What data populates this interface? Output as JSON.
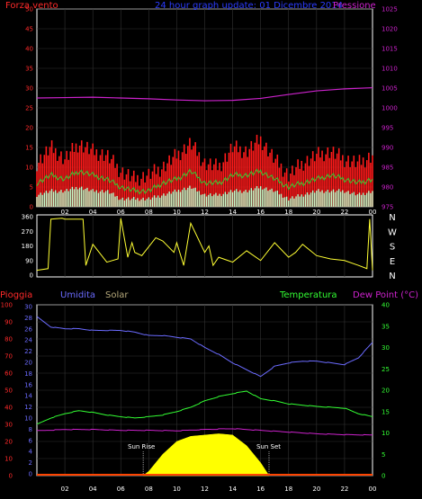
{
  "colors": {
    "background": "#000000",
    "wind_axis": "#ff2a2a",
    "pressure_axis": "#cc22cc",
    "title": "#2b3cff",
    "direction_axis": "#ffffff",
    "rain_axis": "#ff2a2a",
    "humidity_axis": "#6b6bff",
    "solar_axis": "#b5a87a",
    "temperature_axis": "#33ff33",
    "dewpoint_axis": "#cc22cc",
    "gust": "#ff1a1a",
    "wind_avg": "#33cc33",
    "wind_min": "#ccffcc",
    "pressure": "#cc22cc",
    "direction": "#ffff33",
    "humidity": "#6b6bff",
    "temperature": "#33ff33",
    "dewpoint": "#cc22cc",
    "solar": "#ffff00",
    "rain": "#ff4400"
  },
  "header": {
    "wind_label": "Forza vento",
    "title": "24 hour graph update: 01 Dicembre 2014",
    "pressure_label": "Pressione"
  },
  "bottom_header": {
    "rain_label": "Pioggia",
    "humidity_label": "Umidita",
    "solar_label": "Solar",
    "temperature_label": "Temperatura",
    "dewpoint_label": "Dew Point (°C)"
  },
  "annotations": {
    "sunrise": "Sun Rise",
    "sunset": "Sun Set"
  },
  "chart_data": [
    {
      "type": "line",
      "name": "wind",
      "x_ticks": [
        "02",
        "04",
        "06",
        "08",
        "10",
        "12",
        "14",
        "16",
        "18",
        "20",
        "22",
        "00"
      ],
      "ylim": [
        0,
        50
      ],
      "y_ticks": [
        0,
        5,
        10,
        15,
        20,
        25,
        30,
        35,
        40,
        45,
        50
      ],
      "y2lim": [
        975,
        1025
      ],
      "y2_ticks": [
        975,
        980,
        985,
        990,
        995,
        1000,
        1005,
        1010,
        1015,
        1020,
        1025
      ],
      "series": [
        {
          "key": "gust",
          "x": [
            0,
            1,
            2,
            3,
            4,
            5,
            6,
            7,
            8,
            9,
            10,
            11,
            12,
            13,
            14,
            15,
            16,
            17,
            18,
            19,
            20,
            21,
            22,
            23,
            24
          ],
          "values": [
            11,
            15,
            12,
            16,
            14,
            13,
            9,
            7,
            8,
            10,
            13,
            16,
            11,
            10,
            15,
            14,
            17,
            12,
            8,
            11,
            13,
            14,
            12,
            11,
            13
          ]
        },
        {
          "key": "average",
          "x": [
            0,
            1,
            2,
            3,
            4,
            5,
            6,
            7,
            8,
            9,
            10,
            11,
            12,
            13,
            14,
            15,
            16,
            17,
            18,
            19,
            20,
            21,
            22,
            23,
            24
          ],
          "values": [
            6,
            8,
            7,
            9,
            8,
            7,
            5,
            4,
            4,
            6,
            7,
            9,
            6,
            6,
            8,
            8,
            9,
            7,
            5,
            6,
            7,
            8,
            7,
            6,
            7
          ]
        },
        {
          "key": "minimum",
          "x": [
            0,
            1,
            2,
            3,
            4,
            5,
            6,
            7,
            8,
            9,
            10,
            11,
            12,
            13,
            14,
            15,
            16,
            17,
            18,
            19,
            20,
            21,
            22,
            23,
            24
          ],
          "values": [
            3,
            4,
            4,
            5,
            4,
            4,
            2,
            2,
            2,
            3,
            4,
            5,
            3,
            3,
            4,
            4,
            5,
            4,
            2,
            3,
            4,
            4,
            4,
            3,
            4
          ]
        },
        {
          "key": "pressure",
          "axis": "y2",
          "x": [
            0,
            2,
            4,
            6,
            8,
            10,
            12,
            14,
            16,
            18,
            20,
            22,
            24
          ],
          "values": [
            1002.5,
            1002.6,
            1002.7,
            1002.5,
            1002.3,
            1002.0,
            1001.8,
            1001.9,
            1002.4,
            1003.4,
            1004.3,
            1004.8,
            1005.1
          ]
        }
      ]
    },
    {
      "type": "line",
      "name": "wind_direction",
      "x_ticks": [
        "02",
        "04",
        "06",
        "08",
        "10",
        "12",
        "14",
        "16",
        "18",
        "20",
        "22",
        "00"
      ],
      "ylim": [
        0,
        360
      ],
      "y_ticks": [
        0,
        90,
        180,
        270,
        360
      ],
      "y2_ticks": [
        "N",
        "W",
        "S",
        "E",
        "N"
      ],
      "series": [
        {
          "key": "direction",
          "x": [
            0,
            0.8,
            1,
            1.8,
            2,
            3.3,
            3.5,
            4,
            5,
            5.8,
            6,
            6.5,
            6.8,
            7,
            7.5,
            8.5,
            9,
            9.8,
            10,
            10.5,
            11,
            12,
            12.3,
            12.6,
            13,
            14,
            15,
            16,
            17,
            18,
            18.5,
            19,
            20,
            21,
            22,
            23,
            23.6,
            23.8,
            24
          ],
          "values": [
            30,
            40,
            345,
            350,
            345,
            345,
            60,
            190,
            80,
            100,
            350,
            110,
            200,
            140,
            120,
            230,
            210,
            140,
            200,
            60,
            320,
            140,
            180,
            60,
            110,
            80,
            150,
            90,
            200,
            110,
            140,
            190,
            120,
            100,
            90,
            60,
            40,
            345,
            30
          ]
        }
      ]
    },
    {
      "type": "line",
      "name": "rain_humidity_solar_temperature_dewpoint",
      "x_ticks": [
        "02",
        "04",
        "06",
        "08",
        "10",
        "12",
        "14",
        "16",
        "18",
        "20",
        "22",
        "00"
      ],
      "y_ticks_rain": [
        0,
        10,
        20,
        30,
        40,
        50,
        60,
        70,
        80,
        90,
        100
      ],
      "y_ticks_humidity": [
        0,
        2,
        4,
        6,
        8,
        10,
        12,
        14,
        16,
        18,
        20,
        22,
        24,
        26,
        28,
        30
      ],
      "ylim_rain": [
        0,
        100
      ],
      "y2lim": [
        0,
        40
      ],
      "y2_ticks": [
        0,
        5,
        10,
        15,
        20,
        25,
        30,
        35,
        40
      ],
      "series": [
        {
          "key": "humidity",
          "x": [
            0,
            1,
            2,
            3,
            4,
            5,
            6,
            7,
            8,
            9,
            10,
            11,
            12,
            13,
            14,
            15,
            16,
            17,
            18,
            19,
            20,
            21,
            22,
            23,
            24
          ],
          "values": [
            93,
            87,
            86,
            86,
            85,
            85,
            85,
            84,
            82,
            82,
            81,
            80,
            75,
            71,
            66,
            62,
            58,
            64,
            66,
            67,
            67,
            66,
            65,
            69,
            78
          ]
        },
        {
          "key": "temperature",
          "axis": "y2",
          "x": [
            0,
            1,
            2,
            3,
            4,
            5,
            6,
            7,
            8,
            9,
            10,
            11,
            12,
            13,
            14,
            15,
            16,
            17,
            18,
            19,
            20,
            21,
            22,
            23,
            24
          ],
          "values": [
            12,
            13.5,
            14.5,
            15.2,
            14.8,
            14.2,
            13.8,
            13.5,
            13.8,
            14.2,
            15,
            16,
            17.5,
            18.5,
            19.2,
            19.8,
            18,
            17.5,
            16.8,
            16.5,
            16.2,
            16,
            15.8,
            14.5,
            13.8
          ]
        },
        {
          "key": "dewpoint",
          "axis": "y2",
          "x": [
            0,
            2,
            4,
            6,
            8,
            10,
            12,
            14,
            16,
            18,
            20,
            22,
            24
          ],
          "values": [
            10.5,
            10.8,
            10.8,
            10.6,
            10.6,
            10.5,
            10.8,
            11,
            10.6,
            10.2,
            9.8,
            9.6,
            9.5
          ]
        },
        {
          "key": "solar",
          "axis": "y2",
          "x": [
            7.6,
            8,
            9,
            10,
            11,
            12,
            13,
            14,
            15,
            16,
            16.6
          ],
          "values": [
            0,
            1,
            5,
            8,
            9.2,
            9.5,
            9.8,
            9.5,
            7,
            3,
            0
          ]
        },
        {
          "key": "rain",
          "x": [
            0,
            24
          ],
          "values": [
            0,
            0
          ]
        }
      ]
    }
  ]
}
